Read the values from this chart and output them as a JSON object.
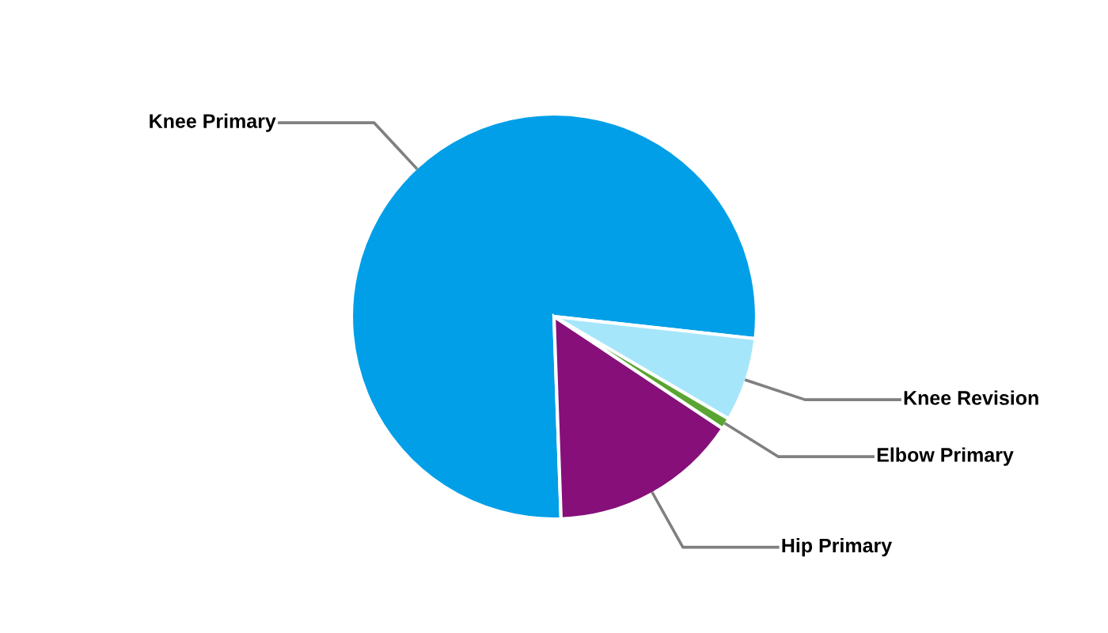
{
  "chart_data": {
    "type": "pie",
    "categories": [
      "Knee Primary",
      "Knee Revision",
      "Elbow Primary",
      "Hip Primary"
    ],
    "values": [
      77.3,
      6.7,
      0.9,
      15.1
    ],
    "colors": [
      "#009fe8",
      "#a6e6fb",
      "#5aa532",
      "#860f7a"
    ],
    "legend": false
  }
}
